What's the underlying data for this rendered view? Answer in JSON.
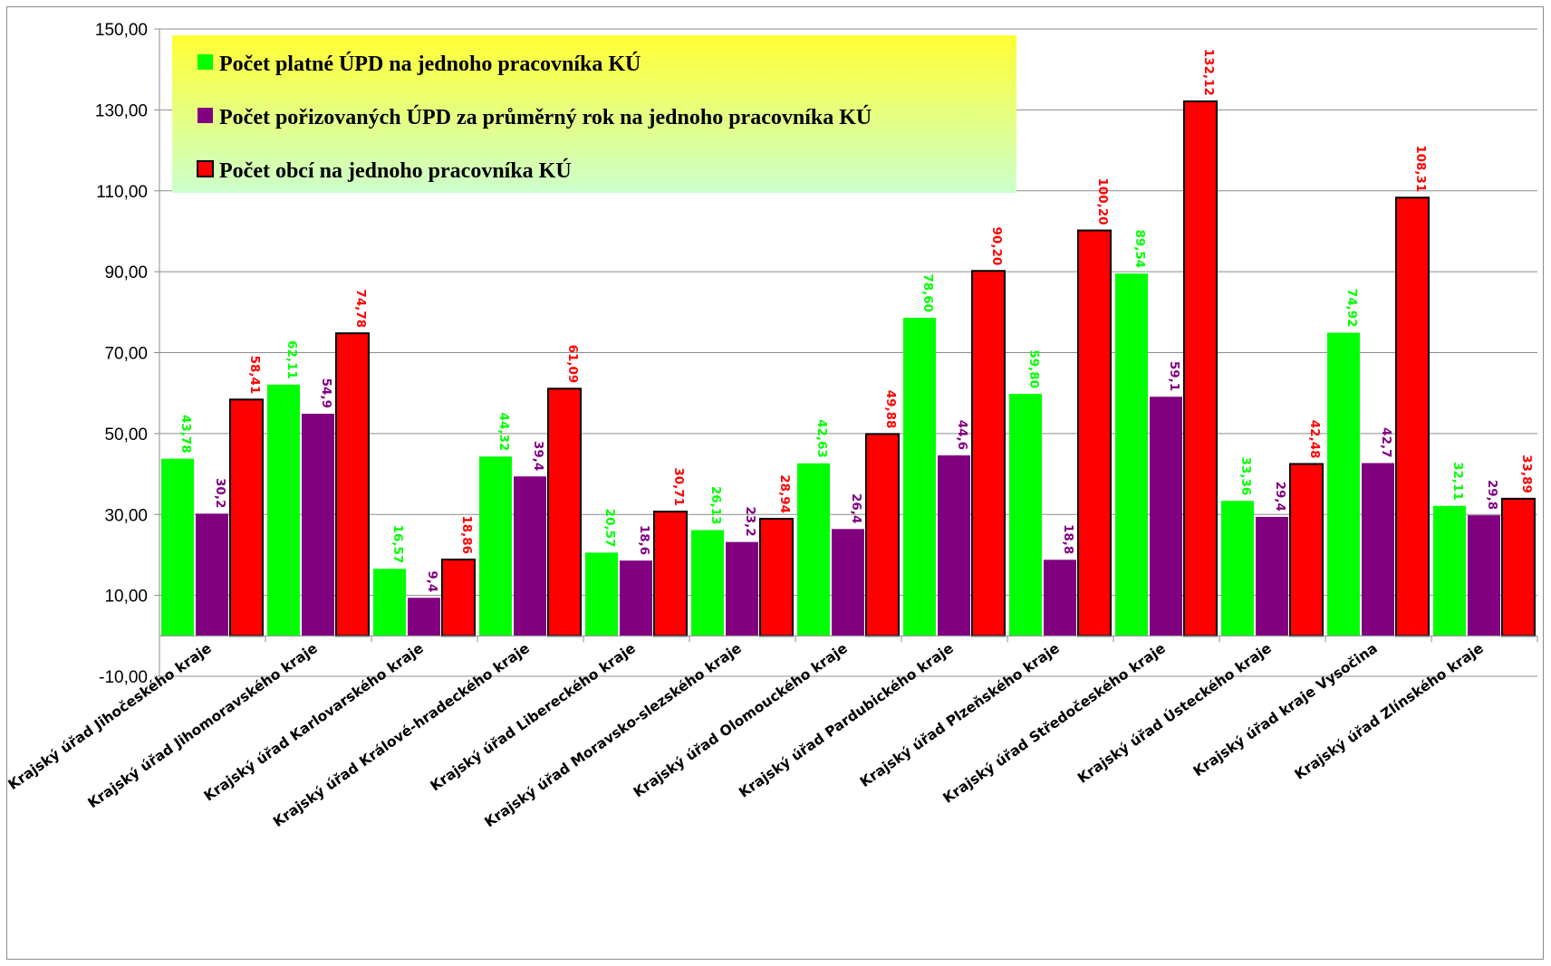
{
  "chart_data": {
    "type": "bar",
    "categories": [
      "Krajský úřad Jihočeského kraje",
      "Krajský úřad Jihomoravského kraje",
      "Krajský úřad Karlovarského kraje",
      "Krajský úřad Králové-hradeckého kraje",
      "Krajský úřad Libereckého kraje",
      "Krajský úřad Moravsko-slezského kraje",
      "Krajský úřad Olomouckého kraje",
      "Krajský úřad Pardubického kraje",
      "Krajský úřad Plzeňského kraje",
      "Krajský úřad Středočeského kraje",
      "Krajský úřad Ústeckého kraje",
      "Krajský úřad kraje Vysočina",
      "Krajský úřad Zlínského kraje"
    ],
    "series": [
      {
        "name": "Počet platné ÚPD na jednoho pracovníka KÚ",
        "color": "#00ff00",
        "values": [
          43.78,
          62.11,
          16.57,
          44.32,
          20.57,
          26.13,
          42.63,
          78.6,
          59.8,
          89.54,
          33.36,
          74.92,
          32.11
        ],
        "labels": [
          "43,78",
          "62,11",
          "16,57",
          "44,32",
          "20,57",
          "26,13",
          "42,63",
          "78,60",
          "59,80",
          "89,54",
          "33,36",
          "74,92",
          "32,11"
        ]
      },
      {
        "name": "Počet pořizovaných ÚPD za průměrný rok na jednoho pracovníka KÚ",
        "color": "#800080",
        "values": [
          30.2,
          54.9,
          9.4,
          39.4,
          18.6,
          23.2,
          26.4,
          44.6,
          18.8,
          59.1,
          29.4,
          42.7,
          29.8
        ],
        "labels": [
          "30,2",
          "54,9",
          "9,4",
          "39,4",
          "18,6",
          "23,2",
          "26,4",
          "44,6",
          "18,8",
          "59,1",
          "29,4",
          "42,7",
          "29,8"
        ]
      },
      {
        "name": "Počet obcí na jednoho pracovníka KÚ",
        "color": "#ff0000",
        "values": [
          58.41,
          74.78,
          18.86,
          61.09,
          30.71,
          28.94,
          49.88,
          90.2,
          100.2,
          132.12,
          42.48,
          108.31,
          33.89
        ],
        "labels": [
          "58,41",
          "74,78",
          "18,86",
          "61,09",
          "30,71",
          "28,94",
          "49,88",
          "90,20",
          "100,20",
          "132,12",
          "42,48",
          "108,31",
          "33,89"
        ]
      }
    ],
    "ylim": [
      -10,
      150
    ],
    "yticks": [
      -10,
      10,
      30,
      50,
      70,
      90,
      110,
      130,
      150
    ],
    "ytick_labels": [
      "-10,00",
      "10,00",
      "30,00",
      "50,00",
      "70,00",
      "90,00",
      "110,00",
      "130,00",
      "150,00"
    ],
    "grid": true,
    "legend_position": "top-left",
    "legend_background": [
      "#ffff33",
      "#ccffcc"
    ]
  }
}
